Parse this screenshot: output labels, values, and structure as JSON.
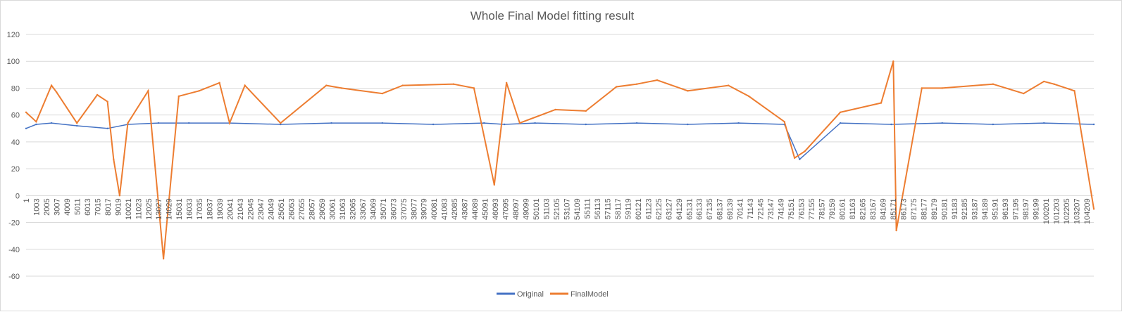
{
  "chart_data": {
    "type": "line",
    "title": "Whole Final Model fitting result",
    "xlabel": "",
    "ylabel": "",
    "ylim": [
      -60,
      120
    ],
    "y_ticks": [
      120,
      100,
      80,
      60,
      40,
      20,
      0,
      -20,
      -40,
      -60
    ],
    "x_range": [
      1,
      104900
    ],
    "x_ticks": [
      1,
      1003,
      2005,
      3007,
      4009,
      5011,
      6013,
      7015,
      8017,
      9019,
      10021,
      11023,
      12025,
      13027,
      14029,
      15031,
      16033,
      17035,
      18037,
      19039,
      20041,
      21043,
      22045,
      23047,
      24049,
      25051,
      26053,
      27055,
      28057,
      29059,
      30061,
      31063,
      32065,
      33067,
      34069,
      35071,
      36073,
      37075,
      38077,
      39079,
      40081,
      41083,
      42085,
      43087,
      44089,
      45091,
      46093,
      47095,
      48097,
      49099,
      50101,
      51103,
      52105,
      53107,
      54109,
      55111,
      56113,
      57115,
      58117,
      59119,
      60121,
      61123,
      62125,
      63127,
      64129,
      65131,
      66133,
      67135,
      68137,
      69139,
      70141,
      71143,
      72145,
      73147,
      74149,
      75151,
      76153,
      77155,
      78157,
      79159,
      80161,
      81163,
      82165,
      83167,
      84169,
      85171,
      86173,
      87175,
      88177,
      89179,
      90181,
      91183,
      92185,
      93187,
      94189,
      95191,
      96193,
      97195,
      98197,
      99199,
      100201,
      101203,
      102205,
      103207,
      104209
    ],
    "grid": true,
    "legend_position": "bottom",
    "series": [
      {
        "name": "Original",
        "color": "#4472c4",
        "x": [
          1,
          1000,
          2500,
          5000,
          8000,
          10000,
          13000,
          16000,
          20000,
          25000,
          30000,
          35000,
          40000,
          45000,
          47000,
          50000,
          55000,
          60000,
          65000,
          70000,
          74500,
          76000,
          80000,
          85000,
          90000,
          95000,
          100000,
          104900
        ],
        "values": [
          50,
          53,
          54,
          52,
          50,
          53,
          54,
          54,
          54,
          53,
          54,
          54,
          53,
          54,
          53,
          54,
          53,
          54,
          53,
          54,
          53,
          27,
          54,
          53,
          54,
          53,
          54,
          53
        ]
      },
      {
        "name": "FinalModel",
        "color": "#ed7d31",
        "x": [
          1,
          1000,
          2500,
          3000,
          5000,
          7000,
          8000,
          8600,
          9200,
          10000,
          12000,
          13500,
          15000,
          17000,
          19000,
          20000,
          21500,
          25000,
          29500,
          31000,
          35000,
          37000,
          42000,
          44000,
          46000,
          47200,
          48500,
          52000,
          55000,
          58000,
          60000,
          62000,
          65000,
          69000,
          71000,
          74500,
          75500,
          76500,
          80000,
          84000,
          85200,
          85500,
          88000,
          90000,
          95000,
          98000,
          100000,
          101000,
          103000,
          104900
        ],
        "values": [
          62,
          55,
          82,
          77,
          54,
          75,
          70,
          27,
          0,
          54,
          78,
          -47,
          74,
          78,
          84,
          54,
          82,
          54,
          82,
          80,
          76,
          82,
          83,
          80,
          8,
          84,
          54,
          64,
          63,
          81,
          83,
          86,
          78,
          82,
          74,
          55,
          28,
          33,
          62,
          69,
          100,
          -26,
          80,
          80,
          83,
          76,
          85,
          83,
          78,
          -10
        ]
      }
    ]
  }
}
